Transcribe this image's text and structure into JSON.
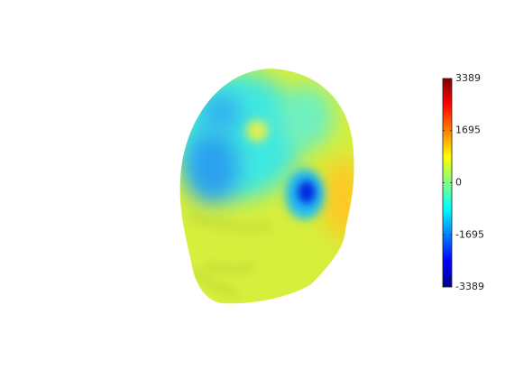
{
  "chart_data": {
    "type": "colorbar",
    "colormap": "jet",
    "ylim": [
      -3389,
      3389
    ],
    "yticks": [
      -3389,
      -1695,
      0,
      1695,
      3389
    ]
  }
}
